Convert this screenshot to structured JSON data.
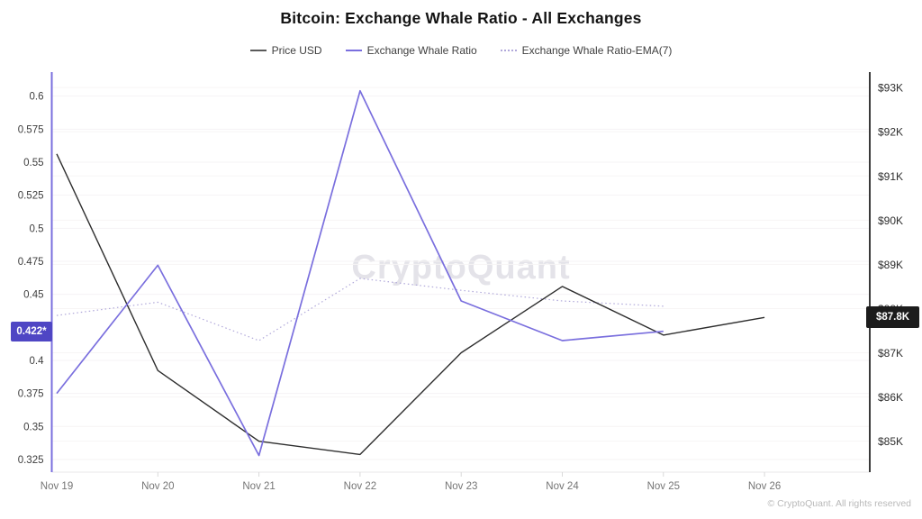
{
  "title": "Bitcoin: Exchange Whale Ratio - All Exchanges",
  "watermark": "CryptoQuant",
  "footer": "© CryptoQuant. All rights reserved",
  "badges": {
    "left": {
      "label": "0.422*",
      "value": 0.422,
      "bg": "#4f46c4"
    },
    "right": {
      "label": "$87.8K",
      "value": 87.8,
      "bg": "#1c1c1c"
    }
  },
  "chart_data": {
    "type": "line",
    "title": "Bitcoin: Exchange Whale Ratio - All Exchanges",
    "categories": [
      "Nov 19",
      "Nov 20",
      "Nov 21",
      "Nov 22",
      "Nov 23",
      "Nov 24",
      "Nov 25",
      "Nov 26"
    ],
    "series": [
      {
        "name": "Price USD",
        "axis": "right",
        "unit": "K USD",
        "color": "#2e2e2e",
        "style": "solid",
        "values": [
          91.5,
          86.6,
          85.0,
          84.7,
          87.0,
          88.5,
          87.4,
          87.8
        ]
      },
      {
        "name": "Exchange Whale Ratio",
        "axis": "left",
        "color": "#7a6fde",
        "style": "solid",
        "values": [
          0.375,
          0.472,
          0.328,
          0.604,
          0.445,
          0.415,
          0.422,
          null
        ]
      },
      {
        "name": "Exchange Whale Ratio-EMA(7)",
        "axis": "left",
        "color": "#b0a8da",
        "style": "dotted",
        "values": [
          0.434,
          0.444,
          0.415,
          0.462,
          0.453,
          0.445,
          0.441,
          null
        ]
      }
    ],
    "left_axis": {
      "min": 0.3154,
      "max": 0.6182,
      "color": "#7a6fde",
      "ticks": [
        {
          "value": 0.6,
          "label": "0.6"
        },
        {
          "value": 0.575,
          "label": "0.575"
        },
        {
          "value": 0.55,
          "label": "0.55"
        },
        {
          "value": 0.525,
          "label": "0.525"
        },
        {
          "value": 0.5,
          "label": "0.5"
        },
        {
          "value": 0.475,
          "label": "0.475"
        },
        {
          "value": 0.45,
          "label": "0.45"
        },
        {
          "value": 0.4,
          "label": "0.4"
        },
        {
          "value": 0.375,
          "label": "0.375"
        },
        {
          "value": 0.35,
          "label": "0.35"
        },
        {
          "value": 0.325,
          "label": "0.325"
        }
      ],
      "last_value_label": "0.422*"
    },
    "right_axis": {
      "min": 84.3,
      "max": 93.35,
      "color": "#3a3a3a",
      "ticks": [
        {
          "value": 93,
          "label": "$93K"
        },
        {
          "value": 92,
          "label": "$92K"
        },
        {
          "value": 91,
          "label": "$91K"
        },
        {
          "value": 90,
          "label": "$90K"
        },
        {
          "value": 89,
          "label": "$89K"
        },
        {
          "value": 88,
          "label": "$88K"
        },
        {
          "value": 87,
          "label": "$87K"
        },
        {
          "value": 86,
          "label": "$86K"
        },
        {
          "value": 85,
          "label": "$85K"
        }
      ],
      "last_value_label": "$87.8K"
    },
    "grid": true,
    "legend_position": "top"
  }
}
